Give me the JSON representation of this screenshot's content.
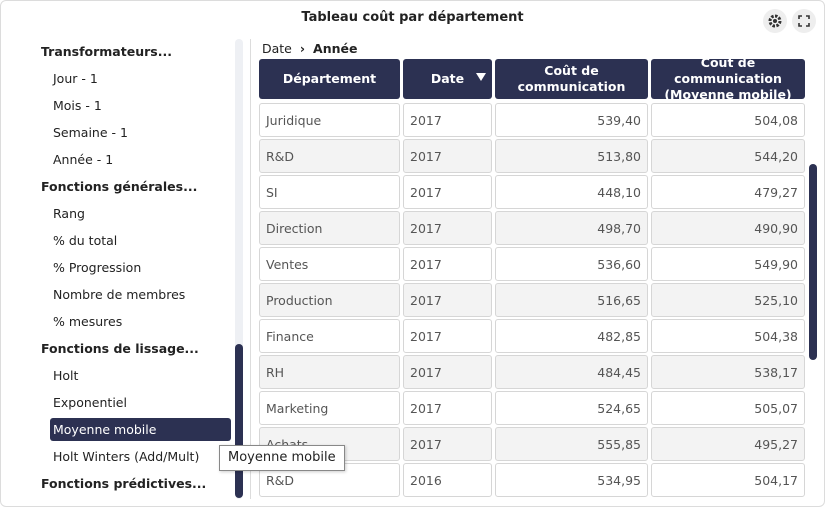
{
  "header": {
    "title": "Tableau coût par département"
  },
  "menu": {
    "groups": [
      {
        "title": "Transformateurs...",
        "items": [
          "Jour - 1",
          "Mois - 1",
          "Semaine - 1",
          "Année - 1"
        ]
      },
      {
        "title": "Fonctions générales...",
        "items": [
          "Rang",
          "% du total",
          "% Progression",
          "Nombre de membres",
          "% mesures"
        ]
      },
      {
        "title": "Fonctions de lissage...",
        "items": [
          "Holt",
          "Exponentiel",
          "Moyenne mobile",
          "Holt Winters (Add/Mult)"
        ]
      },
      {
        "title": "Fonctions prédictives...",
        "items": []
      }
    ],
    "selected": "Moyenne mobile"
  },
  "breadcrumb": {
    "parent": "Date",
    "current": "Année"
  },
  "table": {
    "columns": [
      "Département",
      "Date",
      "Coût de communication",
      "Coût de communication (Moyenne mobile)"
    ],
    "rows": [
      [
        "Juridique",
        "2017",
        "539,40",
        "504,08"
      ],
      [
        "R&D",
        "2017",
        "513,80",
        "544,20"
      ],
      [
        "SI",
        "2017",
        "448,10",
        "479,27"
      ],
      [
        "Direction",
        "2017",
        "498,70",
        "490,90"
      ],
      [
        "Ventes",
        "2017",
        "536,60",
        "549,90"
      ],
      [
        "Production",
        "2017",
        "516,65",
        "525,10"
      ],
      [
        "Finance",
        "2017",
        "482,85",
        "504,38"
      ],
      [
        "RH",
        "2017",
        "484,45",
        "538,17"
      ],
      [
        "Marketing",
        "2017",
        "524,65",
        "505,07"
      ],
      [
        "Achats",
        "2017",
        "555,85",
        "495,27"
      ],
      [
        "R&D",
        "2016",
        "534,95",
        "504,17"
      ]
    ]
  },
  "tooltip": "Moyenne mobile"
}
